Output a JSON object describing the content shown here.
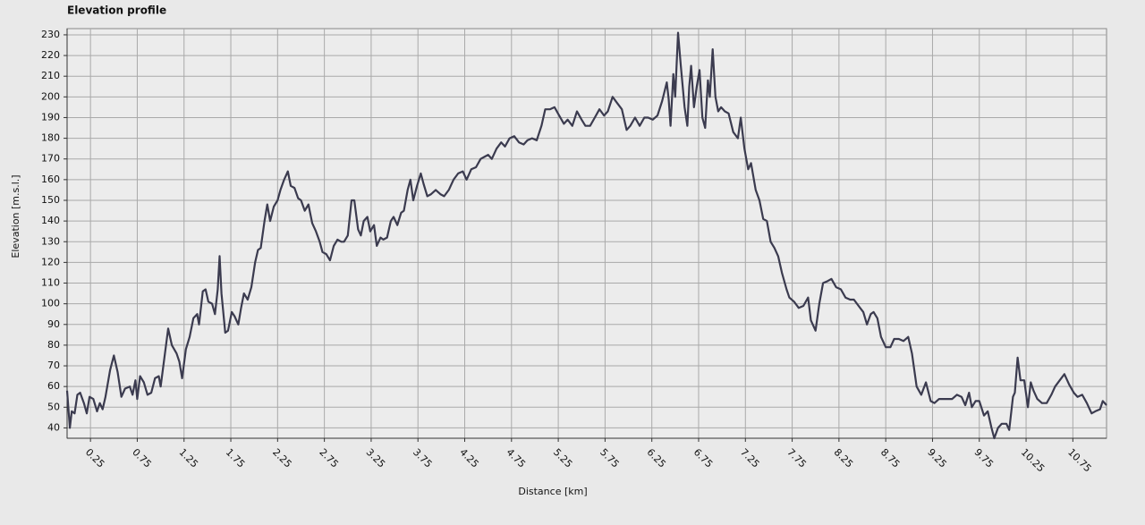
{
  "chart_data": {
    "type": "line",
    "title": "Elevation profile",
    "x_label": "Distance [km]",
    "y_label": "Elevation [m.s.l.]",
    "color": "#3b3b4f",
    "grid": true,
    "xlim": [
      0,
      11.11
    ],
    "ylim": [
      35,
      233
    ],
    "xticks": [
      0.25,
      0.75,
      1.25,
      1.75,
      2.25,
      2.75,
      3.25,
      3.75,
      4.25,
      4.75,
      5.25,
      5.75,
      6.25,
      6.75,
      7.25,
      7.75,
      8.25,
      8.75,
      9.25,
      9.75,
      10.25,
      10.75
    ],
    "yticks": [
      40,
      50,
      60,
      70,
      80,
      90,
      100,
      110,
      120,
      130,
      140,
      150,
      160,
      170,
      180,
      190,
      200,
      210,
      220,
      230
    ],
    "x": [
      0.0,
      0.03,
      0.05,
      0.08,
      0.11,
      0.14,
      0.18,
      0.21,
      0.24,
      0.28,
      0.32,
      0.35,
      0.38,
      0.41,
      0.46,
      0.5,
      0.54,
      0.58,
      0.62,
      0.67,
      0.7,
      0.73,
      0.75,
      0.78,
      0.82,
      0.86,
      0.9,
      0.94,
      0.98,
      1.0,
      1.04,
      1.08,
      1.12,
      1.17,
      1.2,
      1.23,
      1.27,
      1.31,
      1.35,
      1.39,
      1.41,
      1.45,
      1.48,
      1.51,
      1.55,
      1.58,
      1.61,
      1.63,
      1.65,
      1.69,
      1.72,
      1.76,
      1.79,
      1.83,
      1.86,
      1.89,
      1.93,
      1.97,
      2.01,
      2.04,
      2.07,
      2.11,
      2.14,
      2.17,
      2.21,
      2.25,
      2.28,
      2.32,
      2.36,
      2.39,
      2.43,
      2.47,
      2.5,
      2.54,
      2.58,
      2.62,
      2.66,
      2.7,
      2.73,
      2.77,
      2.81,
      2.85,
      2.89,
      2.93,
      2.96,
      3.0,
      3.04,
      3.07,
      3.11,
      3.14,
      3.17,
      3.21,
      3.24,
      3.28,
      3.31,
      3.35,
      3.38,
      3.42,
      3.46,
      3.49,
      3.53,
      3.57,
      3.6,
      3.64,
      3.67,
      3.7,
      3.74,
      3.78,
      3.81,
      3.85,
      3.89,
      3.94,
      3.99,
      4.03,
      4.08,
      4.13,
      4.18,
      4.23,
      4.27,
      4.32,
      4.37,
      4.42,
      4.46,
      4.5,
      4.54,
      4.59,
      4.64,
      4.68,
      4.73,
      4.78,
      4.83,
      4.88,
      4.92,
      4.97,
      5.02,
      5.07,
      5.11,
      5.16,
      5.21,
      5.26,
      5.31,
      5.35,
      5.4,
      5.45,
      5.5,
      5.54,
      5.59,
      5.64,
      5.69,
      5.74,
      5.78,
      5.83,
      5.88,
      5.93,
      5.98,
      6.02,
      6.07,
      6.12,
      6.17,
      6.21,
      6.26,
      6.31,
      6.36,
      6.41,
      6.43,
      6.45,
      6.48,
      6.5,
      6.53,
      6.56,
      6.6,
      6.63,
      6.65,
      6.67,
      6.7,
      6.73,
      6.76,
      6.79,
      6.82,
      6.85,
      6.87,
      6.9,
      6.93,
      6.96,
      6.99,
      7.03,
      7.07,
      7.12,
      7.17,
      7.2,
      7.24,
      7.28,
      7.31,
      7.36,
      7.4,
      7.44,
      7.48,
      7.52,
      7.56,
      7.6,
      7.64,
      7.69,
      7.72,
      7.77,
      7.82,
      7.87,
      7.92,
      7.95,
      8.0,
      8.04,
      8.08,
      8.13,
      8.17,
      8.22,
      8.27,
      8.32,
      8.37,
      8.41,
      8.46,
      8.51,
      8.55,
      8.59,
      8.62,
      8.66,
      8.7,
      8.75,
      8.8,
      8.84,
      8.89,
      8.94,
      8.99,
      9.03,
      9.08,
      9.13,
      9.18,
      9.23,
      9.27,
      9.32,
      9.37,
      9.42,
      9.46,
      9.51,
      9.56,
      9.6,
      9.64,
      9.67,
      9.71,
      9.75,
      9.8,
      9.84,
      9.88,
      9.91,
      9.95,
      9.99,
      10.04,
      10.07,
      10.11,
      10.13,
      10.16,
      10.19,
      10.23,
      10.27,
      10.3,
      10.33,
      10.37,
      10.42,
      10.47,
      10.52,
      10.56,
      10.61,
      10.66,
      10.71,
      10.76,
      10.8,
      10.85,
      10.9,
      10.95,
      10.99,
      11.04,
      11.07,
      11.11
    ],
    "values": [
      58,
      40,
      48,
      47,
      56,
      57,
      52,
      47,
      55,
      54,
      48,
      52,
      49,
      55,
      68,
      75,
      67,
      55,
      59,
      60,
      56,
      63,
      54,
      65,
      62,
      56,
      57,
      64,
      65,
      60,
      74,
      88,
      80,
      76,
      72,
      64,
      78,
      84,
      93,
      95,
      90,
      106,
      107,
      101,
      100,
      95,
      107,
      123,
      105,
      86,
      87,
      96,
      94,
      90,
      98,
      105,
      102,
      108,
      120,
      126,
      127,
      140,
      148,
      140,
      147,
      150,
      155,
      160,
      164,
      157,
      156,
      151,
      150,
      145,
      148,
      139,
      135,
      130,
      125,
      124,
      121,
      128,
      131,
      130,
      130,
      133,
      150,
      150,
      136,
      133,
      140,
      142,
      135,
      138,
      128,
      132,
      131,
      132,
      140,
      142,
      138,
      144,
      145,
      155,
      160,
      150,
      157,
      163,
      158,
      152,
      153,
      155,
      153,
      152,
      155,
      160,
      163,
      164,
      160,
      165,
      166,
      170,
      171,
      172,
      170,
      175,
      178,
      176,
      180,
      181,
      178,
      177,
      179,
      180,
      179,
      186,
      194,
      194,
      195,
      191,
      187,
      189,
      186,
      193,
      189,
      186,
      186,
      190,
      194,
      191,
      193,
      200,
      197,
      194,
      184,
      186,
      190,
      186,
      190,
      190,
      189,
      191,
      198,
      207,
      199,
      186,
      211,
      200,
      231,
      215,
      195,
      186,
      205,
      215,
      195,
      205,
      213,
      190,
      185,
      208,
      200,
      223,
      200,
      193,
      195,
      193,
      192,
      183,
      180,
      190,
      175,
      165,
      168,
      155,
      150,
      141,
      140,
      130,
      127,
      123,
      115,
      107,
      103,
      101,
      98,
      99,
      103,
      92,
      87,
      100,
      110,
      111,
      112,
      108,
      107,
      103,
      102,
      102,
      99,
      96,
      90,
      95,
      96,
      93,
      84,
      79,
      79,
      83,
      83,
      82,
      84,
      76,
      60,
      56,
      62,
      53,
      52,
      54,
      54,
      54,
      54,
      56,
      55,
      51,
      57,
      50,
      53,
      53,
      46,
      48,
      40,
      35,
      40,
      42,
      42,
      39,
      55,
      57,
      74,
      63,
      63,
      50,
      62,
      58,
      54,
      52,
      52,
      56,
      60,
      63,
      66,
      61,
      57,
      55,
      56,
      52,
      47,
      48,
      49,
      53,
      51
    ]
  }
}
